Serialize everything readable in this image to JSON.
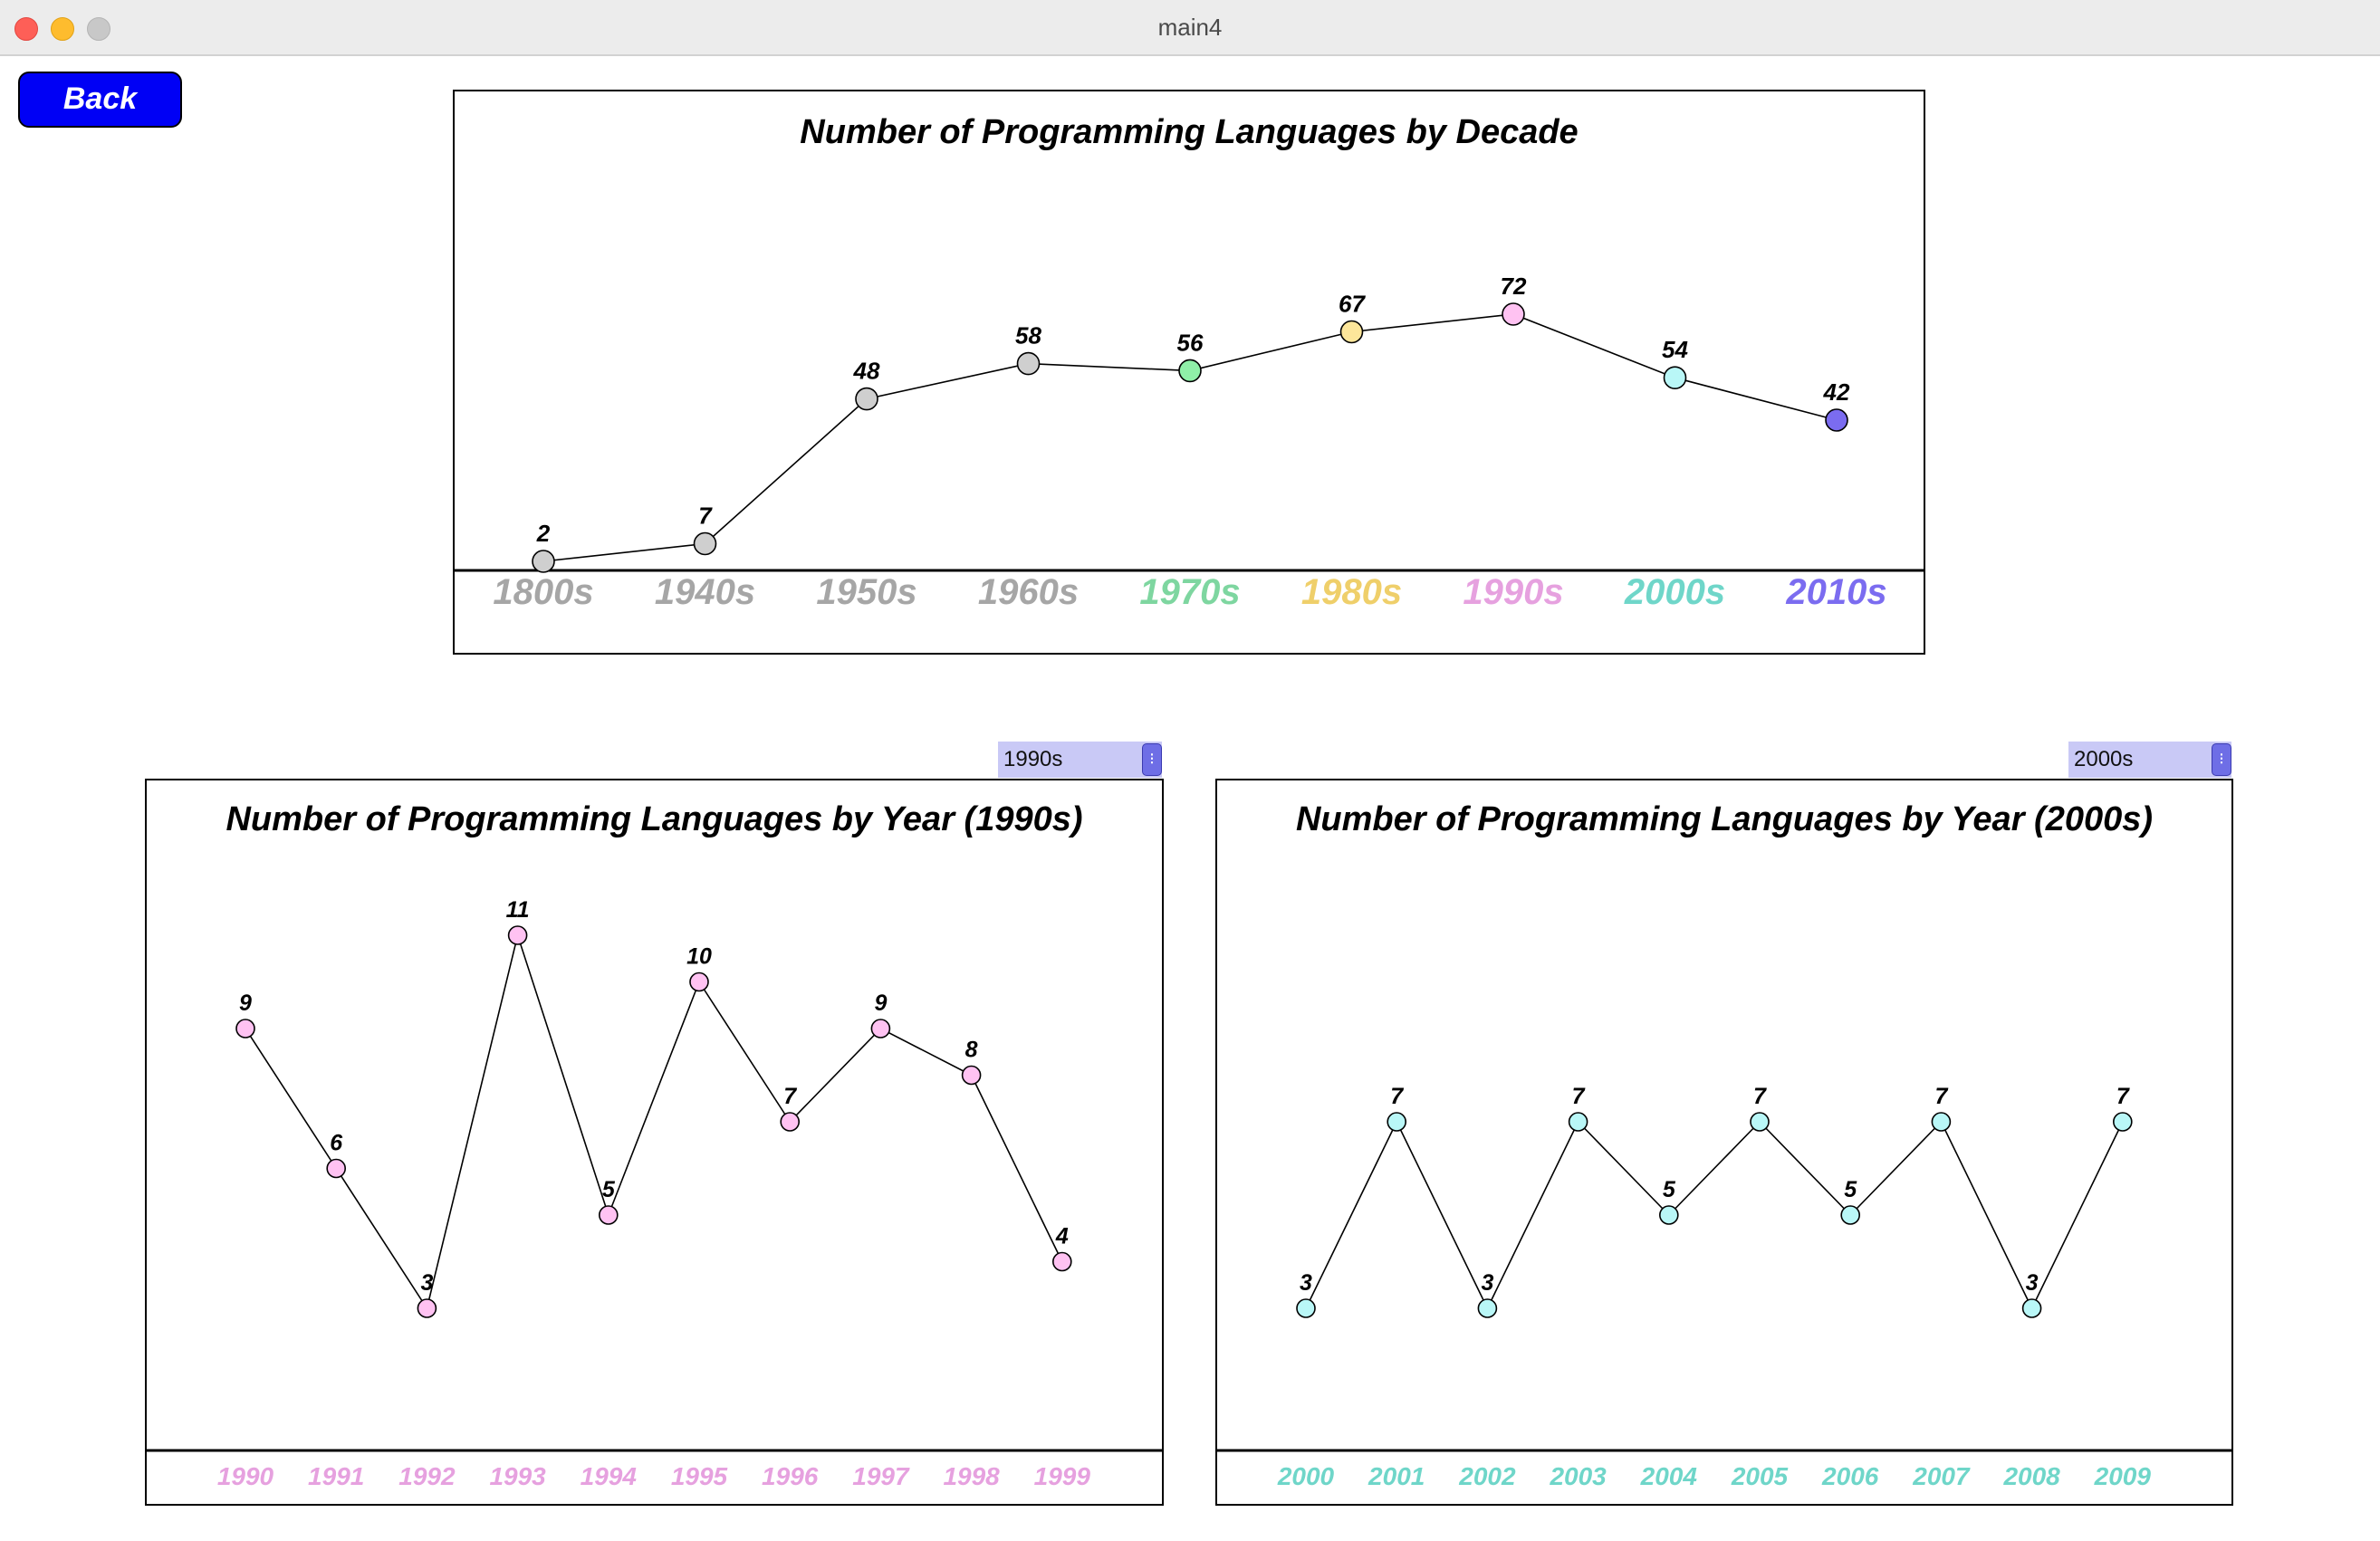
{
  "window": {
    "title": "main4"
  },
  "toolbar": {
    "back_label": "Back"
  },
  "selectors": {
    "left": {
      "value": "1990s"
    },
    "right": {
      "value": "2000s"
    }
  },
  "chart_data": [
    {
      "type": "line",
      "title": "Number of Programming Languages by Decade",
      "categories": [
        "1800s",
        "1940s",
        "1950s",
        "1960s",
        "1970s",
        "1980s",
        "1990s",
        "2000s",
        "2010s"
      ],
      "values": [
        2,
        7,
        48,
        58,
        56,
        67,
        72,
        54,
        42
      ],
      "ylim": [
        0,
        75
      ],
      "grid": false,
      "category_colors": [
        "#a6a6a6",
        "#a6a6a6",
        "#a6a6a6",
        "#a6a6a6",
        "#7ed6a0",
        "#efcf6a",
        "#e6a1df",
        "#6fd6c9",
        "#7b6cf0"
      ],
      "point_colors": [
        "#cfcfcf",
        "#cfcfcf",
        "#cfcfcf",
        "#cfcfcf",
        "#8ff0a8",
        "#fde69a",
        "#ffc2f2",
        "#b9f7f7",
        "#7b6cf0"
      ]
    },
    {
      "type": "line",
      "title": "Number of Programming Languages by Year (1990s)",
      "categories": [
        "1990",
        "1991",
        "1992",
        "1993",
        "1994",
        "1995",
        "1996",
        "1997",
        "1998",
        "1999"
      ],
      "values": [
        9,
        6,
        3,
        11,
        5,
        10,
        7,
        9,
        8,
        4
      ],
      "ylim": [
        0,
        13
      ],
      "grid": false,
      "label_color": "#e6a1df",
      "point_color": "#ffc2f2"
    },
    {
      "type": "line",
      "title": "Number of Programming Languages by Year (2000s)",
      "categories": [
        "2000",
        "2001",
        "2002",
        "2003",
        "2004",
        "2005",
        "2006",
        "2007",
        "2008",
        "2009"
      ],
      "values": [
        3,
        7,
        3,
        7,
        5,
        7,
        5,
        7,
        3,
        7
      ],
      "ylim": [
        0,
        13
      ],
      "grid": false,
      "label_color": "#6fd6c9",
      "point_color": "#b9f7f7"
    }
  ]
}
